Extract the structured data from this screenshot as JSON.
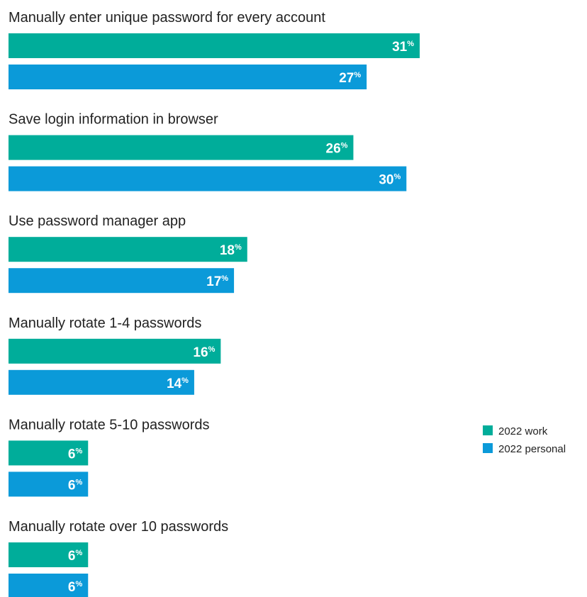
{
  "chart_data": {
    "type": "bar",
    "orientation": "horizontal",
    "categories": [
      "Manually enter unique password for every account",
      "Save login information in browser",
      "Use password manager app",
      "Manually rotate 1-4 passwords",
      "Manually rotate 5-10 passwords",
      "Manually rotate over 10 passwords"
    ],
    "series": [
      {
        "name": "2022 work",
        "color": "#00ad9a",
        "values": [
          31,
          26,
          18,
          16,
          6,
          6
        ]
      },
      {
        "name": "2022 personal",
        "color": "#0b9ad9",
        "values": [
          27,
          30,
          17,
          14,
          6,
          6
        ]
      }
    ],
    "unit": "%",
    "xlim": [
      0,
      31
    ],
    "grid": false,
    "legend": "right"
  }
}
